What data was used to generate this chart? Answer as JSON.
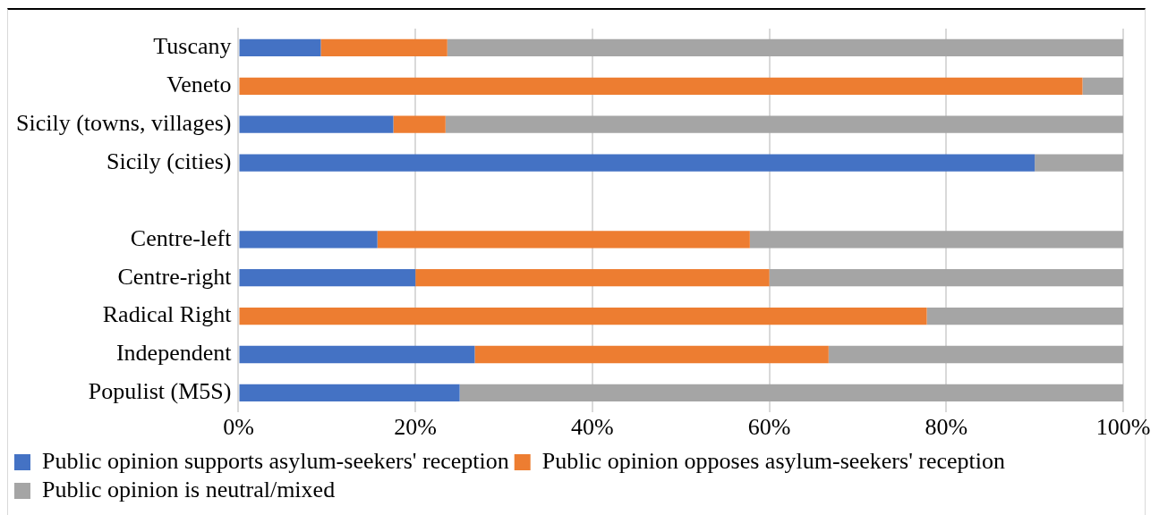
{
  "chart_data": {
    "type": "bar",
    "orientation": "horizontal",
    "stacked": true,
    "categories": [
      "Tuscany",
      "Veneto",
      "Sicily (towns, villages)",
      "Sicily (cities)",
      null,
      "Centre-left",
      "Centre-right",
      "Radical Right",
      "Independent",
      "Populist (M5S)"
    ],
    "series": [
      {
        "name": "Public opinion supports asylum-seekers' reception",
        "color": "#4472c4",
        "values": [
          9.3,
          0,
          17.5,
          90,
          null,
          15.7,
          20,
          0,
          26.7,
          25
        ]
      },
      {
        "name": "Public opinion opposes asylum-seekers' reception",
        "color": "#ed7d31",
        "values": [
          14.3,
          95.4,
          5.9,
          0,
          null,
          42.1,
          40,
          77.8,
          40,
          0
        ]
      },
      {
        "name": "Public opinion is neutral/mixed",
        "color": "#a5a5a5",
        "values": [
          76.4,
          4.6,
          76.6,
          10,
          null,
          42.2,
          40,
          22.2,
          33.3,
          75
        ]
      }
    ],
    "xlim": [
      0,
      100
    ],
    "xticks": [
      {
        "value": 0,
        "label": "0%"
      },
      {
        "value": 20,
        "label": "20%"
      },
      {
        "value": 40,
        "label": "40%"
      },
      {
        "value": 60,
        "label": "60%"
      },
      {
        "value": 80,
        "label": "80%"
      },
      {
        "value": 100,
        "label": "100%"
      }
    ],
    "grid": "x",
    "legend": "bottom"
  }
}
